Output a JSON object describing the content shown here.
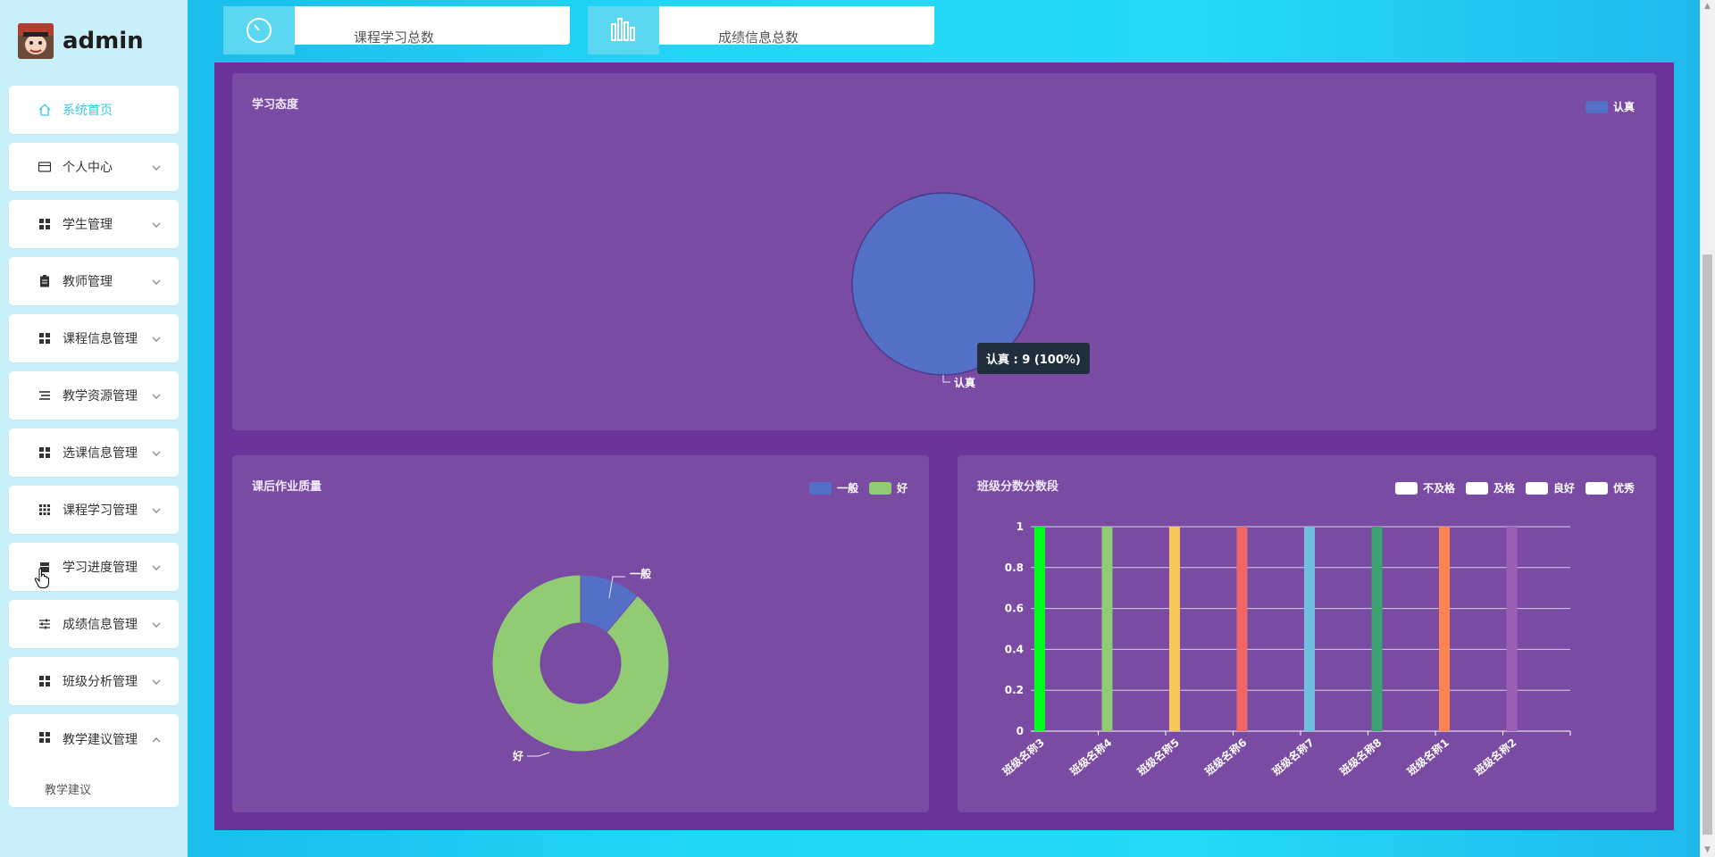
{
  "user": {
    "name": "admin"
  },
  "sidebar": {
    "items": [
      {
        "label": "系统首页",
        "icon": "home-icon",
        "active": true
      },
      {
        "label": "个人中心",
        "icon": "wallet-icon"
      },
      {
        "label": "学生管理",
        "icon": "grid-icon"
      },
      {
        "label": "教师管理",
        "icon": "clipboard-icon"
      },
      {
        "label": "课程信息管理",
        "icon": "grid-icon"
      },
      {
        "label": "教学资源管理",
        "icon": "list-icon"
      },
      {
        "label": "选课信息管理",
        "icon": "grid-icon"
      },
      {
        "label": "课程学习管理",
        "icon": "apps-icon"
      },
      {
        "label": "学习进度管理",
        "icon": "calendar-icon"
      },
      {
        "label": "成绩信息管理",
        "icon": "sliders-icon"
      },
      {
        "label": "班级分析管理",
        "icon": "grid-icon"
      },
      {
        "label": "教学建议管理",
        "icon": "grid-icon",
        "expanded": true,
        "sub": "教学建议"
      }
    ]
  },
  "stats": [
    {
      "label": "课程学习总数",
      "icon": "timer-icon"
    },
    {
      "label": "成绩信息总数",
      "icon": "bar-chart-icon"
    }
  ],
  "colors": {
    "blue": "#5470c6",
    "green": "#91cc75",
    "panel": "#6a3399",
    "card": "#794ba2"
  },
  "chart_data": [
    {
      "type": "pie",
      "title": "学习态度",
      "legend": [
        "认真"
      ],
      "slices": [
        {
          "name": "认真",
          "value": 9,
          "color": "#5470c6"
        }
      ],
      "tooltip": "认真 : 9 (100%)"
    },
    {
      "type": "pie",
      "variant": "donut",
      "title": "课后作业质量",
      "legend": [
        "一般",
        "好"
      ],
      "slices": [
        {
          "name": "一般",
          "value": 1,
          "color": "#5470c6"
        },
        {
          "name": "好",
          "value": 8,
          "color": "#91cc75"
        }
      ]
    },
    {
      "type": "bar",
      "title": "班级分数分数段",
      "legend": [
        "不及格",
        "及格",
        "良好",
        "优秀"
      ],
      "categories": [
        "班级名称3",
        "班级名称4",
        "班级名称5",
        "班级名称6",
        "班级名称7",
        "班级名称8",
        "班级名称1",
        "班级名称2"
      ],
      "values": [
        1,
        1,
        1,
        1,
        1,
        1,
        1,
        1
      ],
      "bar_colors": [
        "#00ff1e",
        "#91cc75",
        "#fac858",
        "#ee6666",
        "#73c0de",
        "#3ba272",
        "#fc8452",
        "#9a60b4"
      ],
      "ylim": [
        0,
        1
      ],
      "yticks": [
        "0",
        "0.2",
        "0.4",
        "0.6",
        "0.8",
        "1"
      ],
      "grid": true
    }
  ]
}
